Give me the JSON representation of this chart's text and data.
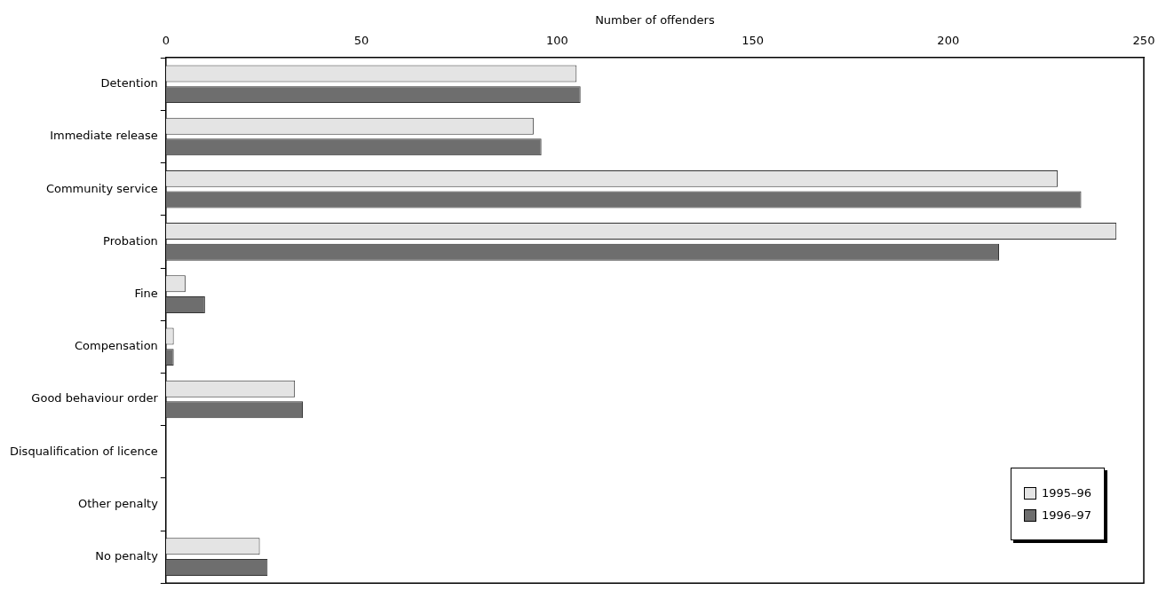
{
  "chart_data": {
    "type": "bar",
    "orientation": "horizontal",
    "xlabel": "Number of offenders",
    "categories": [
      "Detention",
      "Immediate release",
      "Community service",
      "Probation",
      "Fine",
      "Compensation",
      "Good behaviour order",
      "Disqualification of licence",
      "Other penalty",
      "No penalty"
    ],
    "series": [
      {
        "name": "1995–96",
        "color": "#e4e4e4",
        "values": [
          105,
          94,
          228,
          243,
          5,
          2,
          33,
          0,
          0,
          24
        ]
      },
      {
        "name": "1996–97",
        "color": "#6e6e6e",
        "values": [
          106,
          96,
          234,
          213,
          10,
          2,
          35,
          0,
          0,
          26
        ]
      }
    ],
    "xlim": [
      0,
      250
    ],
    "xticks": [
      0,
      50,
      100,
      150,
      200,
      250
    ],
    "grid": false,
    "legend": "bottom right"
  }
}
